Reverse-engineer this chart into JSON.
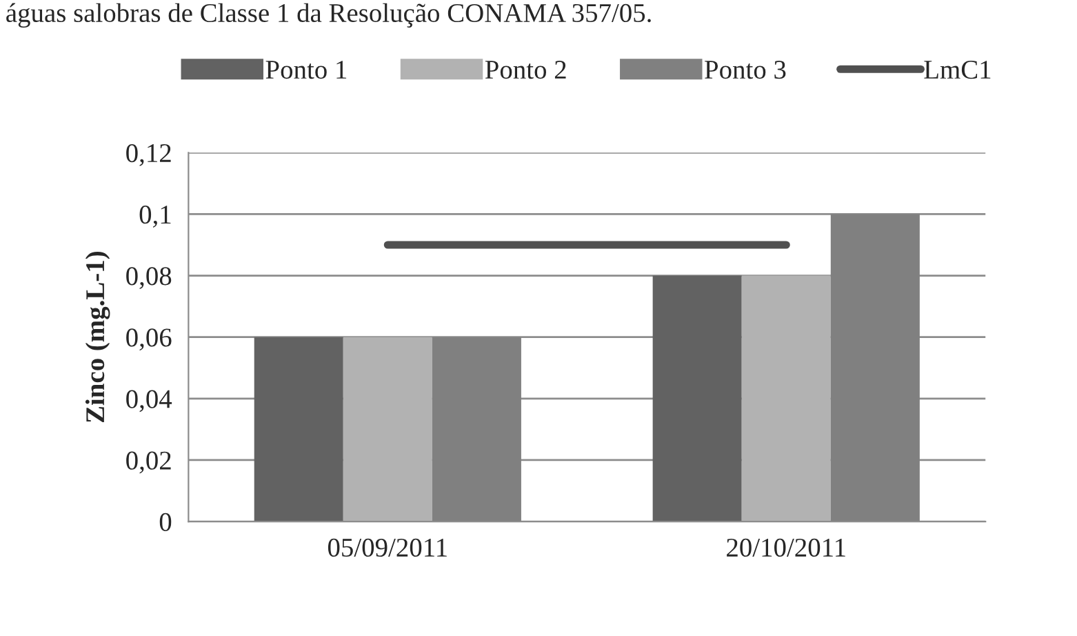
{
  "chart_data": {
    "type": "bar",
    "ylabel": "Zinco (mg.L-1)",
    "annotations": [
      "águas salobras de Classe 1 da Resolução CONAMA 357/05."
    ],
    "categories": [
      "05/09/2011",
      "20/10/2011"
    ],
    "series": [
      {
        "name": "Ponto 1",
        "color": "#626262",
        "values": [
          0.06,
          0.08
        ]
      },
      {
        "name": "Ponto 2",
        "color": "#b2b2b2",
        "values": [
          0.06,
          0.08
        ]
      },
      {
        "name": "Ponto 3",
        "color": "#808080",
        "values": [
          0.06,
          0.1
        ]
      },
      {
        "name": "LmC1",
        "type": "line",
        "color": "#505050",
        "values": [
          0.09,
          0.09
        ]
      }
    ],
    "ylim": [
      0,
      0.12
    ],
    "yticks": [
      {
        "value": 0,
        "label": "0"
      },
      {
        "value": 0.02,
        "label": "0,02"
      },
      {
        "value": 0.04,
        "label": "0,04"
      },
      {
        "value": 0.06,
        "label": "0,06"
      },
      {
        "value": 0.08,
        "label": "0,08"
      },
      {
        "value": 0.1,
        "label": "0,1"
      },
      {
        "value": 0.12,
        "label": "0,12"
      }
    ],
    "grid": "y",
    "legend": "top"
  }
}
